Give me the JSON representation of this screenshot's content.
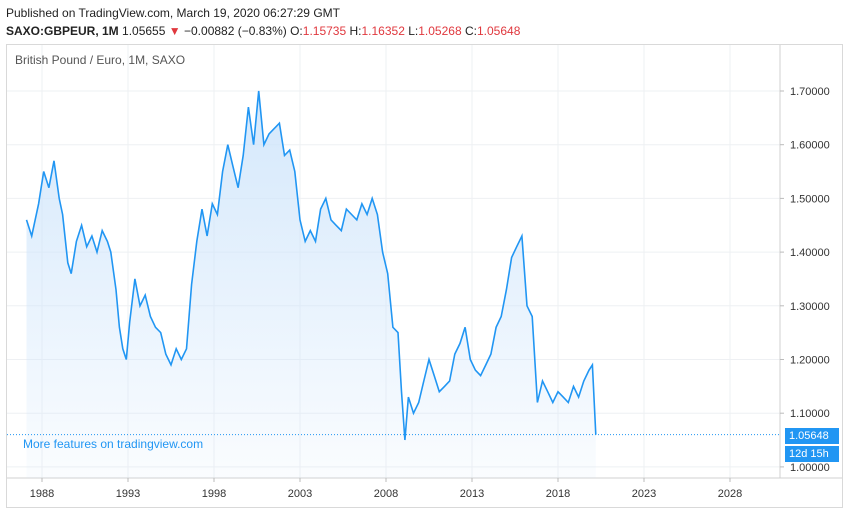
{
  "header": {
    "published": "Published on TradingView.com, March 19, 2020 06:27:29 GMT",
    "ticker": "SAXO:GBPEUR, 1M",
    "last": "1.05655",
    "arrow": "▼",
    "change": "−0.00882 (−0.83%)",
    "o_label": "O:",
    "o_value": "1.15735",
    "h_label": "H:",
    "h_value": "1.16352",
    "l_label": "L:",
    "l_value": "1.05268",
    "c_label": "C:",
    "c_value": "1.05648"
  },
  "chart_title": "British Pound / Euro, 1M, SAXO",
  "promo_text": "More features on tradingview.com",
  "price_tag": "1.05648",
  "countdown_tag": "12d 15h",
  "colors": {
    "line": "#2196f3",
    "area_top": "#cfe5fb",
    "negative": "#e0383e"
  },
  "chart_data": {
    "type": "area",
    "title": "British Pound / Euro, 1M, SAXO",
    "xlabel": "",
    "ylabel": "",
    "x_ticks": [
      "1988",
      "1993",
      "1998",
      "2003",
      "2008",
      "2013",
      "2018",
      "2023",
      "2028"
    ],
    "y_ticks": [
      "1.70000",
      "1.60000",
      "1.50000",
      "1.40000",
      "1.30000",
      "1.20000",
      "1.10000",
      "1.00000"
    ],
    "ylim": [
      0.98,
      1.73
    ],
    "xlim": [
      1986.5,
      2030.5
    ],
    "grid": true,
    "series": [
      {
        "x": [
          1987.1,
          1987.4,
          1987.8,
          1988.1,
          1988.4,
          1988.7,
          1989.0,
          1989.2,
          1989.5,
          1989.7,
          1990.0,
          1990.3,
          1990.6,
          1990.9,
          1991.2,
          1991.5,
          1991.8,
          1992.0,
          1992.3,
          1992.5,
          1992.7,
          1992.9,
          1993.1,
          1993.4,
          1993.7,
          1994.0,
          1994.3,
          1994.6,
          1994.9,
          1995.2,
          1995.5,
          1995.8,
          1996.1,
          1996.4,
          1996.7,
          1997.0,
          1997.3,
          1997.6,
          1997.9,
          1998.2,
          1998.5,
          1998.8,
          1999.1,
          1999.4,
          1999.7,
          2000.0,
          2000.3,
          2000.6,
          2000.9,
          2001.2,
          2001.5,
          2001.8,
          2002.1,
          2002.4,
          2002.7,
          2003.0,
          2003.3,
          2003.6,
          2003.9,
          2004.2,
          2004.5,
          2004.8,
          2005.1,
          2005.4,
          2005.7,
          2006.0,
          2006.3,
          2006.6,
          2006.9,
          2007.2,
          2007.5,
          2007.8,
          2008.1,
          2008.4,
          2008.7,
          2008.9,
          2009.1,
          2009.3,
          2009.6,
          2009.9,
          2010.2,
          2010.5,
          2010.8,
          2011.1,
          2011.4,
          2011.7,
          2012.0,
          2012.3,
          2012.6,
          2012.9,
          2013.2,
          2013.5,
          2013.8,
          2014.1,
          2014.4,
          2014.7,
          2015.0,
          2015.3,
          2015.6,
          2015.9,
          2016.2,
          2016.5,
          2016.8,
          2017.1,
          2017.4,
          2017.7,
          2018.0,
          2018.3,
          2018.6,
          2018.9,
          2019.2,
          2019.5,
          2019.8,
          2020.0,
          2020.2
        ],
        "y": [
          1.46,
          1.43,
          1.49,
          1.55,
          1.52,
          1.57,
          1.5,
          1.47,
          1.38,
          1.36,
          1.42,
          1.45,
          1.41,
          1.43,
          1.4,
          1.44,
          1.42,
          1.4,
          1.33,
          1.26,
          1.22,
          1.2,
          1.27,
          1.35,
          1.3,
          1.32,
          1.28,
          1.26,
          1.25,
          1.21,
          1.19,
          1.22,
          1.2,
          1.22,
          1.34,
          1.42,
          1.48,
          1.43,
          1.49,
          1.47,
          1.55,
          1.6,
          1.56,
          1.52,
          1.58,
          1.67,
          1.6,
          1.7,
          1.6,
          1.62,
          1.63,
          1.64,
          1.58,
          1.59,
          1.55,
          1.46,
          1.42,
          1.44,
          1.42,
          1.48,
          1.5,
          1.46,
          1.45,
          1.44,
          1.48,
          1.47,
          1.46,
          1.49,
          1.47,
          1.5,
          1.47,
          1.4,
          1.36,
          1.26,
          1.25,
          1.14,
          1.05,
          1.13,
          1.1,
          1.12,
          1.16,
          1.2,
          1.17,
          1.14,
          1.15,
          1.16,
          1.21,
          1.23,
          1.26,
          1.2,
          1.18,
          1.17,
          1.19,
          1.21,
          1.26,
          1.28,
          1.33,
          1.39,
          1.41,
          1.43,
          1.3,
          1.28,
          1.12,
          1.16,
          1.14,
          1.12,
          1.14,
          1.13,
          1.12,
          1.15,
          1.13,
          1.16,
          1.18,
          1.19,
          1.06
        ]
      }
    ]
  }
}
